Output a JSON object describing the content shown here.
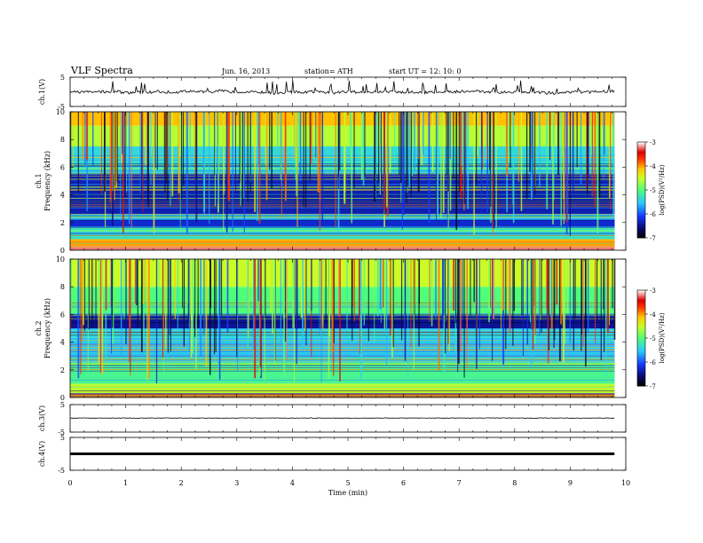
{
  "header": {
    "title": "VLF Spectra",
    "date": "Jun. 16, 2013",
    "station": "station= ATH",
    "start": "start  UT  =    12: 10: 0"
  },
  "chart_data": {
    "type": "heatmap",
    "xlabel": "Time  (min)",
    "xlim": [
      0,
      10
    ],
    "x_ticks": [
      "0",
      "1",
      "2",
      "3",
      "4",
      "5",
      "6",
      "7",
      "8",
      "9",
      "10"
    ],
    "data_end_min": 9.8,
    "panels": [
      {
        "kind": "waveform",
        "ylabel": "ch.1(V)",
        "ylim": [
          -5,
          5
        ],
        "y_ticks": [
          "5",
          "-5"
        ],
        "baseline": 0.0,
        "spike_frequency": "high"
      },
      {
        "kind": "spectrogram",
        "channel_label": "ch.1",
        "ylabel": "Frequency  (kHz)",
        "ylim": [
          0,
          10
        ],
        "y_ticks": [
          "0",
          "2",
          "4",
          "6",
          "8",
          "10"
        ],
        "colorbar_label": "log(PSD)(V²/Hz)",
        "colorbar_range": [
          -7,
          -3
        ],
        "colorbar_ticks": [
          "-3",
          "-4",
          "-5",
          "-6",
          "-7"
        ],
        "bands_khz": [
          {
            "from": 0,
            "to": 0.3,
            "level": -3.2
          },
          {
            "from": 0.3,
            "to": 0.8,
            "level": -4.0
          },
          {
            "from": 0.8,
            "to": 1.6,
            "level": -5.3
          },
          {
            "from": 1.6,
            "to": 2.2,
            "level": -6.3
          },
          {
            "from": 2.2,
            "to": 2.6,
            "level": -5.6
          },
          {
            "from": 2.6,
            "to": 5.5,
            "level": -6.4
          },
          {
            "from": 5.5,
            "to": 7.5,
            "level": -5.4
          },
          {
            "from": 7.5,
            "to": 9.0,
            "level": -4.6
          },
          {
            "from": 9.0,
            "to": 10.0,
            "level": -4.1
          }
        ]
      },
      {
        "kind": "spectrogram",
        "channel_label": "ch.2",
        "ylabel": "Frequency  (kHz)",
        "ylim": [
          0,
          10
        ],
        "y_ticks": [
          "0",
          "2",
          "4",
          "6",
          "8",
          "10"
        ],
        "colorbar_label": "log(PSD)(V²/Hz)",
        "colorbar_range": [
          -7,
          -3
        ],
        "colorbar_ticks": [
          "-3",
          "-4",
          "-5",
          "-6",
          "-7"
        ],
        "bands_khz": [
          {
            "from": 0,
            "to": 0.3,
            "level": -3.6
          },
          {
            "from": 0.3,
            "to": 1.0,
            "level": -4.6
          },
          {
            "from": 1.0,
            "to": 2.5,
            "level": -5.1
          },
          {
            "from": 2.5,
            "to": 4.3,
            "level": -5.6
          },
          {
            "from": 4.3,
            "to": 5.0,
            "level": -5.5
          },
          {
            "from": 5.0,
            "to": 6.0,
            "level": -6.5
          },
          {
            "from": 6.0,
            "to": 8.0,
            "level": -5.0
          },
          {
            "from": 8.0,
            "to": 10.0,
            "level": -4.5
          }
        ]
      },
      {
        "kind": "waveform",
        "ylabel": "ch.3(V)",
        "ylim": [
          -5,
          5
        ],
        "y_ticks": [
          "5",
          "-5"
        ],
        "baseline": 0.1,
        "spike_frequency": "low"
      },
      {
        "kind": "waveform",
        "ylabel": "ch.4(V)",
        "ylim": [
          -5,
          5
        ],
        "y_ticks": [
          "5",
          "-5"
        ],
        "baseline": 0.0,
        "spike_frequency": "none",
        "thick": true
      }
    ]
  }
}
